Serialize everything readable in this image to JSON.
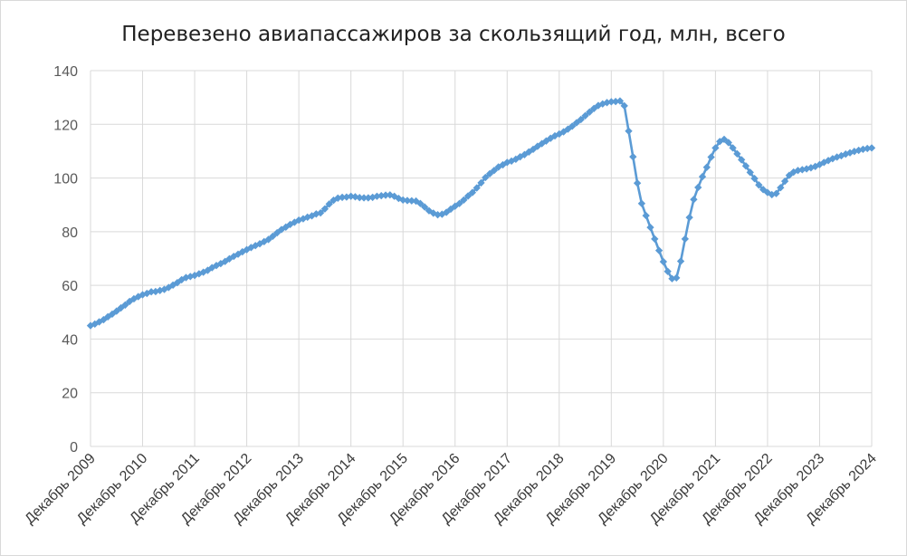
{
  "chart_data": {
    "type": "line",
    "title": "Перевезено авиапассажиров за скользящий год, млн, всего",
    "xlabel": "",
    "ylabel": "",
    "ylim": [
      0,
      140
    ],
    "yticks": [
      "0",
      "20",
      "40",
      "60",
      "80",
      "100",
      "120",
      "140"
    ],
    "xticks": [
      "Декабрь 2009",
      "Декабрь 2010",
      "Декабрь 2011",
      "Декабрь 2012",
      "Декабрь 2013",
      "Декабрь 2014",
      "Декабрь 2015",
      "Декабрь 2016",
      "Декабрь 2017",
      "Декабрь 2018",
      "Декабрь 2019",
      "Декабрь 2020",
      "Декабрь 2021",
      "Декабрь 2022",
      "Декабрь 2023",
      "Декабрь 2024"
    ],
    "grid": true,
    "legend": "none",
    "colors": {
      "series": "#5b9bd5",
      "grid": "#d9d9d9",
      "axis": "#bfbfbf"
    },
    "series": [
      {
        "marker": "diamond",
        "values": [
          45.0,
          45.6,
          46.4,
          47.2,
          48.3,
          49.3,
          50.4,
          51.6,
          52.7,
          54.0,
          55.0,
          55.8,
          56.5,
          57.0,
          57.6,
          57.7,
          58.1,
          58.5,
          59.2,
          60.1,
          61.0,
          62.1,
          62.9,
          63.3,
          63.7,
          64.3,
          64.9,
          65.6,
          66.6,
          67.4,
          68.1,
          68.9,
          69.9,
          70.8,
          71.6,
          72.5,
          73.3,
          74.1,
          74.8,
          75.5,
          76.3,
          77.1,
          78.3,
          79.6,
          80.8,
          81.7,
          82.7,
          83.5,
          84.3,
          84.8,
          85.4,
          85.9,
          86.6,
          87.0,
          88.5,
          90.3,
          91.7,
          92.5,
          92.8,
          92.9,
          93.2,
          93.0,
          92.7,
          92.6,
          92.6,
          92.8,
          93.2,
          93.4,
          93.6,
          93.7,
          93.2,
          92.4,
          91.8,
          91.6,
          91.5,
          91.4,
          90.5,
          89.2,
          87.8,
          86.9,
          86.3,
          86.5,
          87.2,
          88.4,
          89.5,
          90.5,
          91.8,
          93.3,
          94.6,
          96.3,
          98.2,
          100.2,
          101.6,
          102.8,
          104.1,
          104.9,
          105.8,
          106.3,
          107.0,
          107.9,
          108.7,
          109.7,
          110.7,
          111.8,
          112.8,
          113.8,
          114.8,
          115.7,
          116.4,
          117.2,
          118.2,
          119.3,
          120.6,
          121.8,
          123.2,
          124.6,
          125.9,
          127.0,
          127.6,
          128.1,
          128.4,
          128.5,
          128.7,
          126.9,
          117.5,
          107.9,
          98.1,
          90.5,
          86.0,
          81.6,
          77.3,
          73.0,
          68.8,
          65.2,
          62.5,
          62.8,
          69.0,
          77.3,
          85.3,
          92.0,
          96.5,
          100.5,
          104.0,
          107.8,
          111.2,
          113.6,
          114.4,
          113.2,
          111.2,
          109.0,
          106.8,
          104.5,
          102.1,
          99.8,
          97.4,
          95.7,
          94.6,
          93.8,
          94.2,
          96.4,
          98.8,
          101.0,
          102.2,
          102.8,
          103.1,
          103.4,
          103.8,
          104.3,
          105.0,
          105.8,
          106.5,
          107.2,
          107.8,
          108.3,
          108.9,
          109.4,
          109.9,
          110.3,
          110.7,
          111.0,
          111.2
        ]
      }
    ]
  }
}
